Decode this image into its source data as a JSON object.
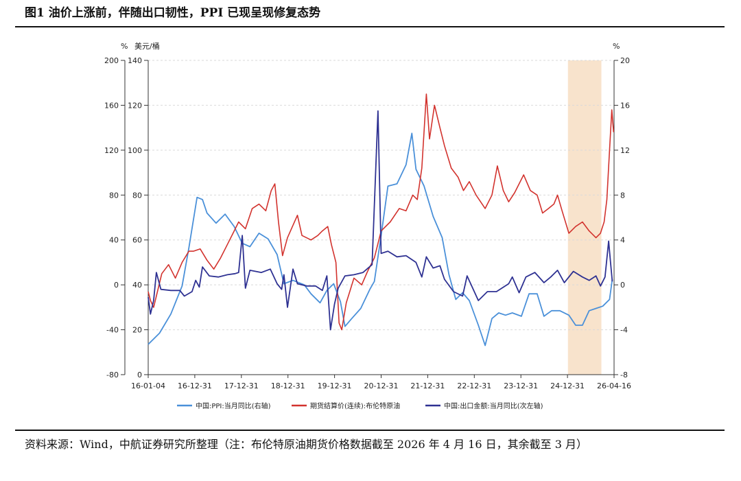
{
  "figure": {
    "title": "图1  油价上涨前，伴随出口韧性，PPI 已现呈现修复态势",
    "source_note": "资料来源：Wind，中航证券研究所整理（注：布伦特原油期货价格数据截至 2026 年 4 月 16 日，其余截至 3 月）"
  },
  "chart_data": {
    "type": "line",
    "title": "",
    "x_tick_labels": [
      "16-01-04",
      "16-12-31",
      "17-12-31",
      "18-12-31",
      "19-12-31",
      "20-12-31",
      "21-12-31",
      "22-12-31",
      "23-12-31",
      "24-12-31",
      "26-04-16"
    ],
    "x_range": [
      2016.0,
      2026.3
    ],
    "axes": {
      "outer_left": {
        "unit": "%",
        "range": [
          -80,
          200
        ],
        "ticks": [
          "200",
          "160",
          "120",
          "80",
          "40",
          "0",
          "-40",
          "-80"
        ]
      },
      "inner_left": {
        "unit": "美元/桶",
        "range": [
          0,
          140
        ],
        "ticks": [
          "140",
          "120",
          "100",
          "80",
          "60",
          "40",
          "20",
          "0"
        ]
      },
      "right": {
        "unit": "%",
        "range": [
          -8,
          20
        ],
        "ticks": [
          "20",
          "16",
          "12",
          "8",
          "4",
          "0",
          "-4",
          "-8"
        ]
      }
    },
    "shaded_region": {
      "from": 2025.28,
      "to": 2026.02,
      "color": "#f8e3cc"
    },
    "legend": [
      "中国:PPI:当月同比(右轴)",
      "期货结算价(连续):布伦特原油",
      "中国:出口金额:当月同比(次左轴)"
    ],
    "series": [
      {
        "name": "中国:PPI:当月同比(右轴)",
        "axis": "right",
        "color": "#4a90d9",
        "points": [
          [
            2016.0,
            -5.3
          ],
          [
            2016.25,
            -4.3
          ],
          [
            2016.5,
            -2.6
          ],
          [
            2016.75,
            -0.1
          ],
          [
            2016.9,
            3.3
          ],
          [
            2017.08,
            7.8
          ],
          [
            2017.2,
            7.6
          ],
          [
            2017.3,
            6.4
          ],
          [
            2017.5,
            5.5
          ],
          [
            2017.7,
            6.3
          ],
          [
            2017.9,
            5.2
          ],
          [
            2018.08,
            3.7
          ],
          [
            2018.25,
            3.4
          ],
          [
            2018.45,
            4.6
          ],
          [
            2018.65,
            4.1
          ],
          [
            2018.85,
            2.7
          ],
          [
            2019.0,
            0.1
          ],
          [
            2019.2,
            0.4
          ],
          [
            2019.45,
            0.0
          ],
          [
            2019.6,
            -0.8
          ],
          [
            2019.8,
            -1.6
          ],
          [
            2019.95,
            -0.5
          ],
          [
            2020.1,
            0.1
          ],
          [
            2020.25,
            -1.5
          ],
          [
            2020.35,
            -3.7
          ],
          [
            2020.5,
            -3.0
          ],
          [
            2020.7,
            -2.1
          ],
          [
            2020.9,
            -0.4
          ],
          [
            2021.0,
            0.3
          ],
          [
            2021.15,
            4.4
          ],
          [
            2021.3,
            8.8
          ],
          [
            2021.5,
            9.0
          ],
          [
            2021.7,
            10.7
          ],
          [
            2021.83,
            13.5
          ],
          [
            2021.92,
            10.3
          ],
          [
            2022.1,
            8.8
          ],
          [
            2022.3,
            6.1
          ],
          [
            2022.5,
            4.2
          ],
          [
            2022.65,
            0.9
          ],
          [
            2022.8,
            -1.3
          ],
          [
            2022.95,
            -0.7
          ],
          [
            2023.1,
            -1.4
          ],
          [
            2023.3,
            -3.6
          ],
          [
            2023.45,
            -5.4
          ],
          [
            2023.6,
            -3.0
          ],
          [
            2023.75,
            -2.5
          ],
          [
            2023.9,
            -2.7
          ],
          [
            2024.05,
            -2.5
          ],
          [
            2024.25,
            -2.8
          ],
          [
            2024.42,
            -0.8
          ],
          [
            2024.6,
            -0.8
          ],
          [
            2024.75,
            -2.8
          ],
          [
            2024.92,
            -2.3
          ],
          [
            2025.1,
            -2.3
          ],
          [
            2025.3,
            -2.7
          ],
          [
            2025.45,
            -3.6
          ],
          [
            2025.6,
            -3.6
          ],
          [
            2025.75,
            -2.3
          ],
          [
            2025.9,
            -2.1
          ],
          [
            2026.05,
            -1.9
          ],
          [
            2026.2,
            -1.3
          ],
          [
            2026.26,
            0.5
          ]
        ]
      },
      {
        "name": "期货结算价(连续):布伦特原油",
        "axis": "inner_left",
        "color": "#d2322d",
        "points": [
          [
            2016.0,
            37
          ],
          [
            2016.05,
            33
          ],
          [
            2016.12,
            30
          ],
          [
            2016.18,
            35
          ],
          [
            2016.3,
            45
          ],
          [
            2016.45,
            49
          ],
          [
            2016.6,
            43
          ],
          [
            2016.75,
            50
          ],
          [
            2016.9,
            55
          ],
          [
            2017.0,
            55
          ],
          [
            2017.15,
            56
          ],
          [
            2017.3,
            51
          ],
          [
            2017.45,
            47
          ],
          [
            2017.6,
            52
          ],
          [
            2017.75,
            58
          ],
          [
            2017.9,
            64
          ],
          [
            2018.0,
            68
          ],
          [
            2018.15,
            65
          ],
          [
            2018.3,
            74
          ],
          [
            2018.45,
            76
          ],
          [
            2018.6,
            73
          ],
          [
            2018.72,
            82
          ],
          [
            2018.8,
            85
          ],
          [
            2018.88,
            68
          ],
          [
            2018.97,
            53
          ],
          [
            2019.08,
            61
          ],
          [
            2019.3,
            71
          ],
          [
            2019.4,
            62
          ],
          [
            2019.6,
            60
          ],
          [
            2019.75,
            62
          ],
          [
            2019.85,
            64
          ],
          [
            2019.97,
            66
          ],
          [
            2020.05,
            58
          ],
          [
            2020.15,
            50
          ],
          [
            2020.22,
            23
          ],
          [
            2020.28,
            20
          ],
          [
            2020.38,
            32
          ],
          [
            2020.55,
            43
          ],
          [
            2020.72,
            40
          ],
          [
            2020.85,
            46
          ],
          [
            2021.0,
            52
          ],
          [
            2021.15,
            64
          ],
          [
            2021.35,
            68
          ],
          [
            2021.55,
            74
          ],
          [
            2021.7,
            73
          ],
          [
            2021.85,
            80
          ],
          [
            2021.95,
            78
          ],
          [
            2022.05,
            92
          ],
          [
            2022.15,
            125
          ],
          [
            2022.22,
            105
          ],
          [
            2022.33,
            120
          ],
          [
            2022.45,
            110
          ],
          [
            2022.55,
            102
          ],
          [
            2022.7,
            92
          ],
          [
            2022.85,
            88
          ],
          [
            2022.97,
            82
          ],
          [
            2023.1,
            86
          ],
          [
            2023.25,
            80
          ],
          [
            2023.45,
            74
          ],
          [
            2023.6,
            80
          ],
          [
            2023.72,
            93
          ],
          [
            2023.85,
            82
          ],
          [
            2023.97,
            77
          ],
          [
            2024.1,
            81
          ],
          [
            2024.3,
            89
          ],
          [
            2024.45,
            82
          ],
          [
            2024.6,
            80
          ],
          [
            2024.72,
            72
          ],
          [
            2024.85,
            74
          ],
          [
            2024.97,
            76
          ],
          [
            2025.05,
            80
          ],
          [
            2025.15,
            73
          ],
          [
            2025.3,
            63
          ],
          [
            2025.45,
            66
          ],
          [
            2025.6,
            68
          ],
          [
            2025.75,
            64
          ],
          [
            2025.9,
            61
          ],
          [
            2026.0,
            63
          ],
          [
            2026.08,
            68
          ],
          [
            2026.14,
            78
          ],
          [
            2026.2,
            100
          ],
          [
            2026.25,
            118
          ],
          [
            2026.29,
            108
          ]
        ]
      },
      {
        "name": "中国:出口金额:当月同比(次左轴)",
        "axis": "outer_left",
        "color": "#2e3192",
        "points": [
          [
            2016.0,
            -11
          ],
          [
            2016.05,
            -26
          ],
          [
            2016.12,
            -14
          ],
          [
            2016.18,
            11
          ],
          [
            2016.28,
            -4
          ],
          [
            2016.5,
            -5
          ],
          [
            2016.7,
            -5
          ],
          [
            2016.8,
            -10
          ],
          [
            2016.97,
            -6
          ],
          [
            2017.05,
            4
          ],
          [
            2017.13,
            -2
          ],
          [
            2017.2,
            16
          ],
          [
            2017.35,
            8
          ],
          [
            2017.55,
            7
          ],
          [
            2017.75,
            9
          ],
          [
            2017.92,
            10
          ],
          [
            2018.0,
            11
          ],
          [
            2018.08,
            44
          ],
          [
            2018.15,
            -3
          ],
          [
            2018.25,
            13
          ],
          [
            2018.5,
            11
          ],
          [
            2018.7,
            14
          ],
          [
            2018.85,
            1
          ],
          [
            2018.95,
            -4
          ],
          [
            2019.0,
            9
          ],
          [
            2019.08,
            -20
          ],
          [
            2019.2,
            14
          ],
          [
            2019.3,
            1
          ],
          [
            2019.5,
            -1
          ],
          [
            2019.7,
            -1
          ],
          [
            2019.85,
            -5
          ],
          [
            2019.95,
            8
          ],
          [
            2020.03,
            -40
          ],
          [
            2020.12,
            -17
          ],
          [
            2020.2,
            -3
          ],
          [
            2020.35,
            8
          ],
          [
            2020.55,
            9
          ],
          [
            2020.75,
            11
          ],
          [
            2020.95,
            18
          ],
          [
            2021.08,
            155
          ],
          [
            2021.15,
            28
          ],
          [
            2021.3,
            30
          ],
          [
            2021.5,
            25
          ],
          [
            2021.7,
            26
          ],
          [
            2021.92,
            20
          ],
          [
            2022.05,
            7
          ],
          [
            2022.15,
            25
          ],
          [
            2022.3,
            15
          ],
          [
            2022.45,
            17
          ],
          [
            2022.55,
            5
          ],
          [
            2022.75,
            -6
          ],
          [
            2022.95,
            -10
          ],
          [
            2023.05,
            8
          ],
          [
            2023.3,
            -14
          ],
          [
            2023.5,
            -6
          ],
          [
            2023.7,
            -6
          ],
          [
            2023.97,
            1
          ],
          [
            2024.05,
            7
          ],
          [
            2024.2,
            -7
          ],
          [
            2024.35,
            7
          ],
          [
            2024.55,
            11
          ],
          [
            2024.75,
            2
          ],
          [
            2024.9,
            7
          ],
          [
            2025.05,
            13
          ],
          [
            2025.2,
            2
          ],
          [
            2025.4,
            12
          ],
          [
            2025.6,
            7
          ],
          [
            2025.75,
            4
          ],
          [
            2025.9,
            8
          ],
          [
            2026.0,
            -1
          ],
          [
            2026.1,
            7
          ],
          [
            2026.18,
            39
          ],
          [
            2026.22,
            21
          ],
          [
            2026.26,
            3
          ]
        ]
      }
    ]
  }
}
